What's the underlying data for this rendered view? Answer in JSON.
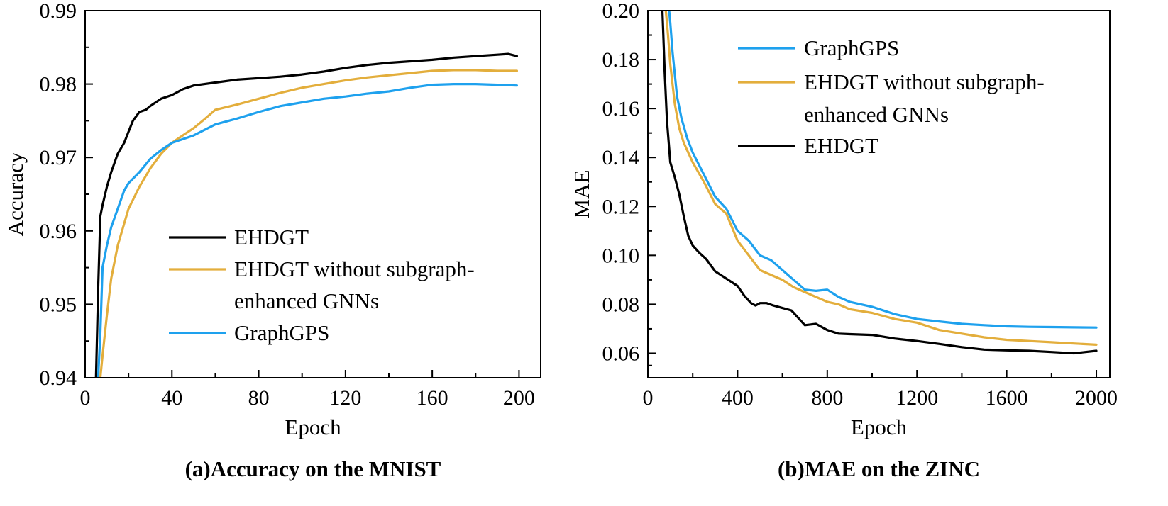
{
  "chart_data": [
    {
      "type": "line",
      "title": "",
      "caption": "(a)Accuracy on the MNIST",
      "xlabel": "Epoch",
      "ylabel": "Accuracy",
      "xlim": [
        0,
        210
      ],
      "ylim": [
        0.94,
        0.99
      ],
      "xticks": [
        0,
        40,
        80,
        120,
        160,
        200
      ],
      "xtick_labels": [
        "0",
        "40",
        "80",
        "120",
        "160",
        "200"
      ],
      "yticks": [
        0.94,
        0.95,
        0.96,
        0.97,
        0.98,
        0.99
      ],
      "ytick_labels": [
        "0.94",
        "0.95",
        "0.96",
        "0.97",
        "0.98",
        "0.99"
      ],
      "legend_position": "center-right",
      "legend_lines": [
        {
          "series": 0,
          "text": "EHDGT"
        },
        {
          "series": 1,
          "text": "EHDGT without subgraph-"
        },
        {
          "series": null,
          "text": "enhanced GNNs"
        },
        {
          "series": 2,
          "text": "GraphGPS"
        }
      ],
      "series": [
        {
          "name": "EHDGT",
          "color": "#000000",
          "x": [
            5,
            6,
            7,
            8,
            10,
            12,
            15,
            18,
            20,
            22,
            25,
            28,
            30,
            35,
            40,
            45,
            50,
            60,
            70,
            80,
            90,
            100,
            110,
            120,
            130,
            140,
            150,
            160,
            170,
            180,
            190,
            195,
            199
          ],
          "y": [
            0.94,
            0.952,
            0.962,
            0.9635,
            0.966,
            0.968,
            0.9705,
            0.972,
            0.9735,
            0.975,
            0.9762,
            0.9765,
            0.977,
            0.978,
            0.9785,
            0.9793,
            0.9798,
            0.9802,
            0.9806,
            0.9808,
            0.981,
            0.9813,
            0.9817,
            0.9822,
            0.9826,
            0.9829,
            0.9831,
            0.9833,
            0.9836,
            0.9838,
            0.984,
            0.9841,
            0.9838
          ]
        },
        {
          "name": "EHDGT without subgraph-enhanced GNNs",
          "color": "#E3AE3C",
          "x": [
            7,
            8,
            10,
            12,
            15,
            18,
            20,
            25,
            30,
            35,
            40,
            45,
            50,
            55,
            60,
            70,
            80,
            90,
            100,
            110,
            120,
            130,
            140,
            150,
            160,
            170,
            180,
            190,
            199
          ],
          "y": [
            0.94,
            0.943,
            0.9485,
            0.9535,
            0.958,
            0.961,
            0.963,
            0.966,
            0.9685,
            0.9705,
            0.972,
            0.973,
            0.974,
            0.9752,
            0.9765,
            0.9772,
            0.978,
            0.9788,
            0.9795,
            0.98,
            0.9805,
            0.9809,
            0.9812,
            0.9815,
            0.9818,
            0.9819,
            0.9819,
            0.9818,
            0.9818
          ]
        },
        {
          "name": "GraphGPS",
          "color": "#1EA1EE",
          "x": [
            6,
            7,
            8,
            10,
            12,
            15,
            18,
            20,
            25,
            30,
            35,
            40,
            45,
            50,
            60,
            70,
            80,
            90,
            100,
            110,
            120,
            130,
            140,
            150,
            160,
            170,
            180,
            190,
            199
          ],
          "y": [
            0.94,
            0.946,
            0.955,
            0.958,
            0.9605,
            0.963,
            0.9655,
            0.9665,
            0.968,
            0.9698,
            0.971,
            0.972,
            0.9725,
            0.973,
            0.9745,
            0.9753,
            0.9762,
            0.977,
            0.9775,
            0.978,
            0.9783,
            0.9787,
            0.979,
            0.9795,
            0.9799,
            0.98,
            0.98,
            0.9799,
            0.9798
          ]
        }
      ]
    },
    {
      "type": "line",
      "title": "",
      "caption": "(b)MAE on the ZINC",
      "xlabel": "Epoch",
      "ylabel": "MAE",
      "xlim": [
        0,
        2060
      ],
      "ylim": [
        0.05,
        0.2
      ],
      "xticks": [
        0,
        400,
        800,
        1200,
        1600,
        2000
      ],
      "xtick_labels": [
        "0",
        "400",
        "800",
        "1200",
        "1600",
        "2000"
      ],
      "yticks": [
        0.06,
        0.08,
        0.1,
        0.12,
        0.14,
        0.16,
        0.18,
        0.2
      ],
      "ytick_labels": [
        "0.06",
        "0.08",
        "0.10",
        "0.12",
        "0.14",
        "0.16",
        "0.18",
        "0.20"
      ],
      "legend_position": "top-right",
      "legend_lines": [
        {
          "series": 0,
          "text": "GraphGPS"
        },
        {
          "series": 1,
          "text": "EHDGT without subgraph-"
        },
        {
          "series": null,
          "text": "enhanced GNNs"
        },
        {
          "series": 2,
          "text": "EHDGT"
        }
      ],
      "series": [
        {
          "name": "GraphGPS",
          "color": "#1EA1EE",
          "x": [
            95,
            100,
            110,
            130,
            150,
            175,
            200,
            250,
            300,
            350,
            400,
            450,
            500,
            550,
            600,
            650,
            700,
            750,
            800,
            850,
            900,
            1000,
            1100,
            1200,
            1300,
            1400,
            1500,
            1600,
            1700,
            1800,
            1900,
            2000
          ],
          "y": [
            0.2,
            0.195,
            0.183,
            0.165,
            0.156,
            0.148,
            0.142,
            0.133,
            0.124,
            0.119,
            0.11,
            0.106,
            0.1,
            0.098,
            0.094,
            0.09,
            0.086,
            0.0855,
            0.086,
            0.083,
            0.081,
            0.079,
            0.076,
            0.074,
            0.073,
            0.072,
            0.0715,
            0.071,
            0.0708,
            0.0707,
            0.0706,
            0.0705
          ]
        },
        {
          "name": "EHDGT without subgraph-enhanced GNNs",
          "color": "#E3AE3C",
          "x": [
            80,
            90,
            100,
            120,
            140,
            160,
            180,
            200,
            250,
            300,
            350,
            400,
            450,
            500,
            550,
            600,
            650,
            700,
            750,
            800,
            850,
            900,
            1000,
            1100,
            1200,
            1300,
            1400,
            1500,
            1600,
            1700,
            1800,
            1900,
            2000
          ],
          "y": [
            0.2,
            0.19,
            0.178,
            0.162,
            0.152,
            0.146,
            0.142,
            0.138,
            0.13,
            0.121,
            0.117,
            0.106,
            0.1,
            0.094,
            0.092,
            0.09,
            0.087,
            0.085,
            0.083,
            0.081,
            0.08,
            0.078,
            0.0765,
            0.074,
            0.0725,
            0.0695,
            0.068,
            0.0665,
            0.0655,
            0.065,
            0.0645,
            0.064,
            0.0635
          ]
        },
        {
          "name": "EHDGT",
          "color": "#000000",
          "x": [
            65,
            75,
            85,
            100,
            120,
            140,
            160,
            180,
            200,
            230,
            260,
            300,
            350,
            400,
            430,
            460,
            480,
            500,
            530,
            560,
            600,
            640,
            680,
            700,
            750,
            800,
            850,
            900,
            1000,
            1100,
            1200,
            1300,
            1400,
            1500,
            1600,
            1700,
            1800,
            1900,
            2000
          ],
          "y": [
            0.2,
            0.175,
            0.155,
            0.138,
            0.132,
            0.125,
            0.116,
            0.108,
            0.104,
            0.101,
            0.0985,
            0.0935,
            0.0905,
            0.0875,
            0.0835,
            0.0805,
            0.0795,
            0.0805,
            0.0805,
            0.0795,
            0.0785,
            0.0775,
            0.0735,
            0.0715,
            0.072,
            0.0695,
            0.068,
            0.0678,
            0.0675,
            0.066,
            0.065,
            0.0638,
            0.0625,
            0.0615,
            0.0612,
            0.061,
            0.0605,
            0.06,
            0.061
          ]
        }
      ]
    }
  ]
}
